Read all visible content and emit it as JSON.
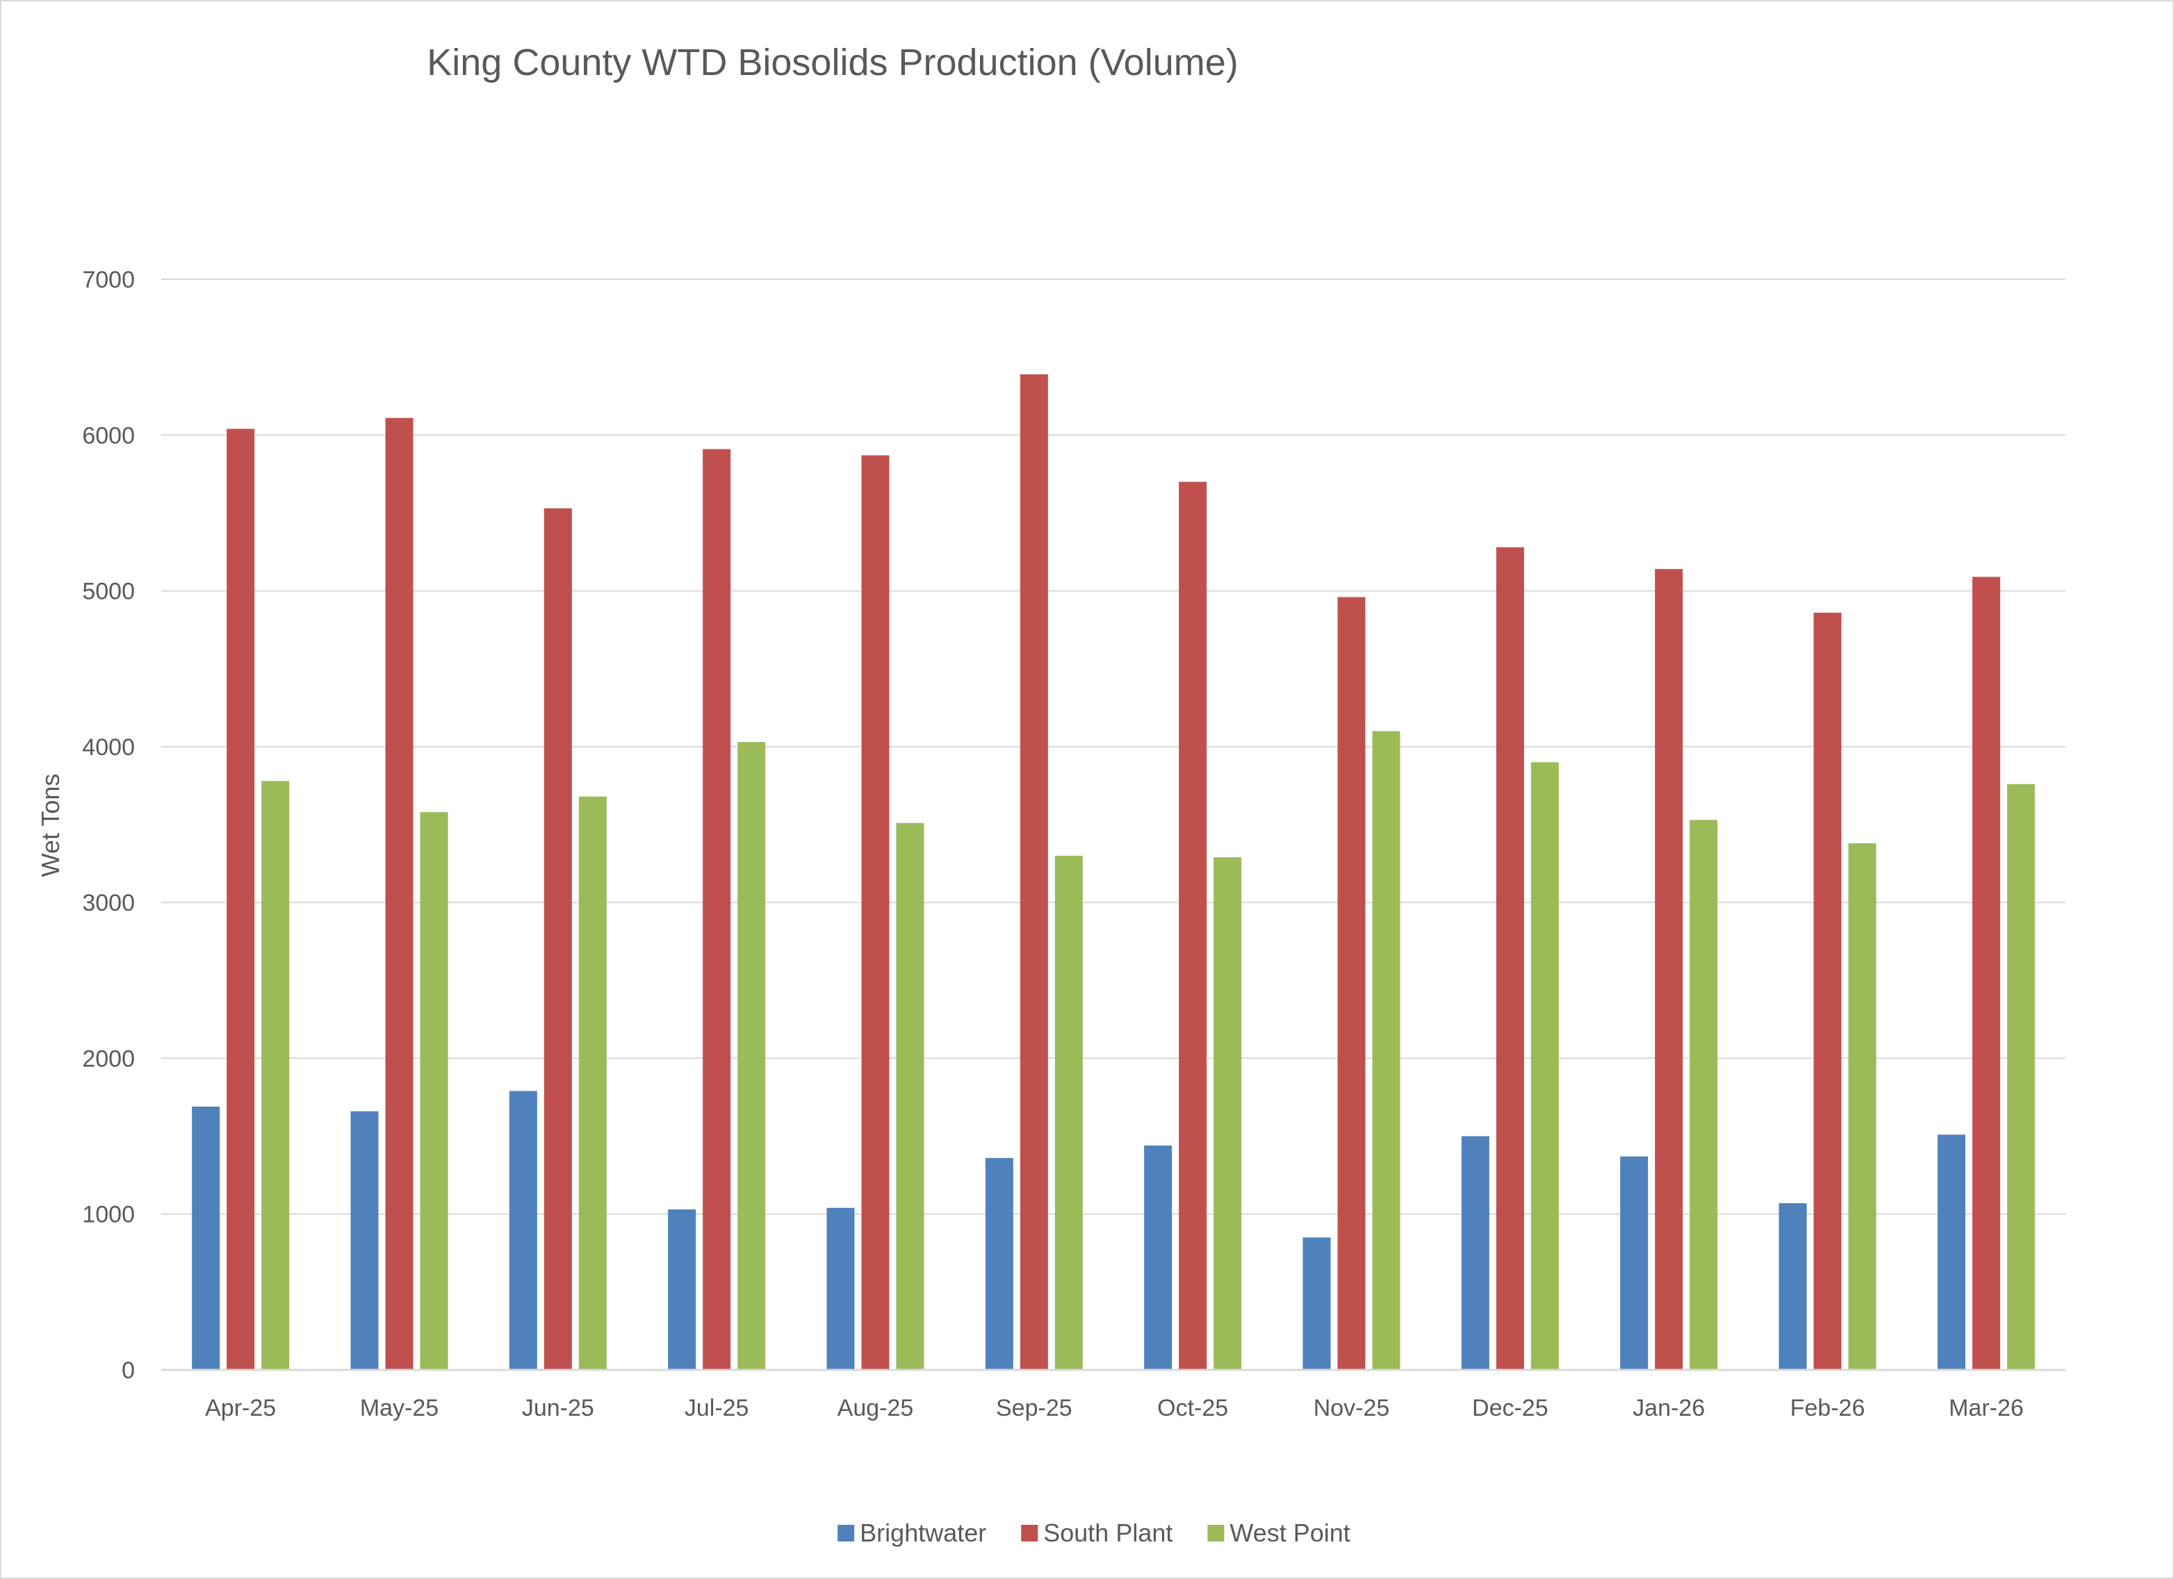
{
  "chart_data": {
    "type": "bar",
    "title": "King County WTD Biosolids Production (Volume)",
    "ylabel": "Wet Tons",
    "xlabel": "",
    "ylim": [
      0,
      7000
    ],
    "yticks": [
      0,
      1000,
      2000,
      3000,
      4000,
      5000,
      6000,
      7000
    ],
    "grid": true,
    "legend_position": "bottom",
    "categories": [
      "Apr-25",
      "May-25",
      "Jun-25",
      "Jul-25",
      "Aug-25",
      "Sep-25",
      "Oct-25",
      "Nov-25",
      "Dec-25",
      "Jan-26",
      "Feb-26",
      "Mar-26"
    ],
    "series": [
      {
        "name": "Brightwater",
        "color": "#4f81bd",
        "values": [
          1690,
          1660,
          1790,
          1030,
          1040,
          1360,
          1440,
          850,
          1500,
          1370,
          1070,
          1510
        ]
      },
      {
        "name": "South Plant",
        "color": "#c0504d",
        "values": [
          6040,
          6110,
          5530,
          5910,
          5870,
          6390,
          5700,
          4960,
          5280,
          5140,
          4860,
          5090
        ]
      },
      {
        "name": "West Point",
        "color": "#9bbb59",
        "values": [
          3780,
          3580,
          3680,
          4030,
          3510,
          3300,
          3290,
          4100,
          3900,
          3530,
          3380,
          3760
        ]
      }
    ]
  }
}
